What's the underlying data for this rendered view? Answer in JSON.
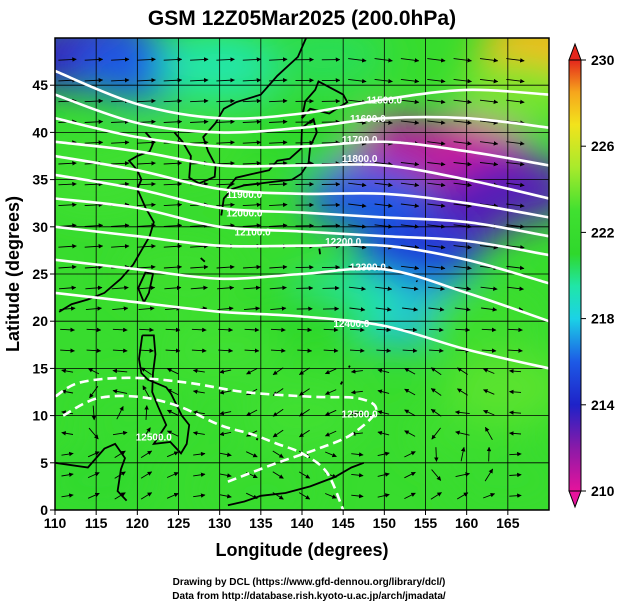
{
  "chart_data": {
    "type": "heatmap",
    "title": "GSM 12Z05Mar2025 (200.0hPa)",
    "xlabel": "Longitude (degrees)",
    "ylabel": "Latitude  (degrees)",
    "xlim": [
      110,
      170
    ],
    "ylim": [
      0,
      50
    ],
    "x_ticks": [
      110,
      115,
      120,
      125,
      130,
      135,
      140,
      145,
      150,
      155,
      160,
      165
    ],
    "y_ticks": [
      0,
      5,
      10,
      15,
      20,
      25,
      30,
      35,
      40,
      45
    ],
    "colorbar": {
      "min": 210,
      "max": 230,
      "ticks": [
        210,
        214,
        218,
        222,
        226,
        230
      ],
      "stops": [
        {
          "v": 210,
          "c": "#e6139c"
        },
        {
          "v": 212,
          "c": "#8a1aa8"
        },
        {
          "v": 214,
          "c": "#1e22c8"
        },
        {
          "v": 216,
          "c": "#1d5ae6"
        },
        {
          "v": 218,
          "c": "#1bd2e6"
        },
        {
          "v": 219.5,
          "c": "#20e6a8"
        },
        {
          "v": 221,
          "c": "#2fd82c"
        },
        {
          "v": 223,
          "c": "#40e030"
        },
        {
          "v": 225,
          "c": "#a8ea2c"
        },
        {
          "v": 227,
          "c": "#f2e31c"
        },
        {
          "v": 228.5,
          "c": "#f6a61c"
        },
        {
          "v": 230,
          "c": "#e4261c"
        }
      ]
    },
    "contours": [
      {
        "label": "11500.0",
        "label_at": [
          150,
          43.5
        ],
        "points": [
          [
            110,
            46.5
          ],
          [
            120,
            43
          ],
          [
            130,
            41.5
          ],
          [
            140,
            42
          ],
          [
            150,
            43.5
          ],
          [
            160,
            44.5
          ],
          [
            170,
            44
          ]
        ]
      },
      {
        "label": "11600.0",
        "label_at": [
          148,
          41.5
        ],
        "points": [
          [
            110,
            44
          ],
          [
            120,
            41
          ],
          [
            130,
            40
          ],
          [
            140,
            40.5
          ],
          [
            150,
            41.5
          ],
          [
            160,
            41.5
          ],
          [
            170,
            40.5
          ]
        ]
      },
      {
        "label": "11700.0",
        "label_at": [
          147,
          39.3
        ],
        "points": [
          [
            110,
            41.5
          ],
          [
            120,
            39.5
          ],
          [
            130,
            38.5
          ],
          [
            140,
            38.5
          ],
          [
            150,
            39
          ],
          [
            160,
            38
          ],
          [
            170,
            36.5
          ]
        ]
      },
      {
        "label": "11800.0",
        "label_at": [
          147,
          37.3
        ],
        "points": [
          [
            110,
            39
          ],
          [
            120,
            38
          ],
          [
            130,
            36.5
          ],
          [
            140,
            36.5
          ],
          [
            150,
            36.5
          ],
          [
            160,
            35
          ],
          [
            170,
            33
          ]
        ]
      },
      {
        "label": "11900.0",
        "label_at": [
          133,
          33.5
        ],
        "points": [
          [
            110,
            37.5
          ],
          [
            120,
            36
          ],
          [
            130,
            34
          ],
          [
            140,
            33.5
          ],
          [
            150,
            33.5
          ],
          [
            160,
            32.5
          ],
          [
            170,
            31
          ]
        ]
      },
      {
        "label": "12000.0",
        "label_at": [
          133,
          31.5
        ],
        "points": [
          [
            110,
            35.5
          ],
          [
            120,
            34
          ],
          [
            130,
            32
          ],
          [
            140,
            31.5
          ],
          [
            150,
            31
          ],
          [
            160,
            30.5
          ],
          [
            170,
            29
          ]
        ]
      },
      {
        "label": "12100.0",
        "label_at": [
          134,
          29.5
        ],
        "points": [
          [
            110,
            33
          ],
          [
            120,
            32
          ],
          [
            130,
            30
          ],
          [
            140,
            29.5
          ],
          [
            150,
            29
          ],
          [
            160,
            28.5
          ],
          [
            170,
            27
          ]
        ]
      },
      {
        "label": "12200.0",
        "label_at": [
          145,
          28.5
        ],
        "points": [
          [
            110,
            30
          ],
          [
            120,
            29
          ],
          [
            130,
            28
          ],
          [
            140,
            28
          ],
          [
            150,
            28
          ],
          [
            160,
            26.5
          ],
          [
            170,
            24
          ]
        ]
      },
      {
        "label": "12300.0",
        "label_at": [
          148,
          25.8
        ],
        "points": [
          [
            110,
            26.5
          ],
          [
            120,
            25.5
          ],
          [
            130,
            24.5
          ],
          [
            140,
            25
          ],
          [
            150,
            25.5
          ],
          [
            160,
            23
          ],
          [
            170,
            20
          ]
        ]
      },
      {
        "label": "12400.0",
        "label_at": [
          146,
          19.8
        ],
        "points": [
          [
            110,
            23
          ],
          [
            120,
            22
          ],
          [
            130,
            21
          ],
          [
            140,
            20.5
          ],
          [
            150,
            19.5
          ],
          [
            160,
            17
          ],
          [
            170,
            15
          ]
        ]
      }
    ],
    "dashed_contours": [
      {
        "label": "12500.0",
        "label_at": [
          122,
          7.8
        ],
        "points": [
          [
            111,
            10
          ],
          [
            115,
            11.8
          ],
          [
            120,
            12
          ],
          [
            125,
            11
          ],
          [
            130,
            9
          ],
          [
            134,
            8
          ],
          [
            137,
            7
          ],
          [
            140,
            6
          ],
          [
            143,
            4
          ],
          [
            145,
            0
          ]
        ]
      },
      {
        "label": "12500.0",
        "label_at": [
          147,
          10.2
        ],
        "points": [
          [
            131,
            3
          ],
          [
            137,
            5
          ],
          [
            142,
            6.5
          ],
          [
            146,
            8
          ],
          [
            149,
            10.5
          ],
          [
            147,
            11.8
          ],
          [
            141,
            12
          ],
          [
            133,
            12.5
          ],
          [
            126,
            13.5
          ],
          [
            119,
            14
          ],
          [
            113,
            13.5
          ],
          [
            110,
            12
          ]
        ]
      }
    ],
    "temperature_field": [
      {
        "lon": 160,
        "lat": 38,
        "value": 210.5
      },
      {
        "lon": 150,
        "lat": 38,
        "value": 211
      },
      {
        "lon": 166,
        "lat": 34,
        "value": 213
      },
      {
        "lon": 158,
        "lat": 31,
        "value": 213
      },
      {
        "lon": 148,
        "lat": 33,
        "value": 216
      },
      {
        "lon": 154,
        "lat": 27,
        "value": 215
      },
      {
        "lon": 152,
        "lat": 21,
        "value": 217.5
      },
      {
        "lon": 145,
        "lat": 22,
        "value": 219.5
      },
      {
        "lon": 112,
        "lat": 48,
        "value": 214
      },
      {
        "lon": 115,
        "lat": 49,
        "value": 213.5
      },
      {
        "lon": 120,
        "lat": 47,
        "value": 216
      },
      {
        "lon": 130,
        "lat": 47,
        "value": 219.5
      },
      {
        "lon": 143,
        "lat": 48,
        "value": 220.5
      },
      {
        "lon": 169,
        "lat": 49,
        "value": 228
      },
      {
        "lon": 166,
        "lat": 44,
        "value": 224
      },
      {
        "lon": 140,
        "lat": 40,
        "value": 221
      },
      {
        "lon": 125,
        "lat": 38,
        "value": 222.5
      },
      {
        "lon": 115,
        "lat": 35,
        "value": 223
      },
      {
        "lon": 125,
        "lat": 25,
        "value": 222.5
      },
      {
        "lon": 140,
        "lat": 20,
        "value": 221
      },
      {
        "lon": 162,
        "lat": 20,
        "value": 222.5
      },
      {
        "lon": 120,
        "lat": 10,
        "value": 222
      },
      {
        "lon": 140,
        "lat": 10,
        "value": 223
      },
      {
        "lon": 160,
        "lat": 8,
        "value": 222.5
      },
      {
        "lon": 115,
        "lat": 3,
        "value": 221.5
      },
      {
        "lon": 135,
        "lat": 2,
        "value": 222
      },
      {
        "lon": 165,
        "lat": 3,
        "value": 222
      },
      {
        "lon": 165,
        "lat": 13,
        "value": 223.5
      },
      {
        "lon": 130,
        "lat": 17,
        "value": 223
      }
    ]
  },
  "credits": {
    "line1": "Drawing by DCL (https://www.gfd-dennou.org/library/dcl/)",
    "line2": "Data from http://database.rish.kyoto-u.ac.jp/arch/jmadata/"
  }
}
